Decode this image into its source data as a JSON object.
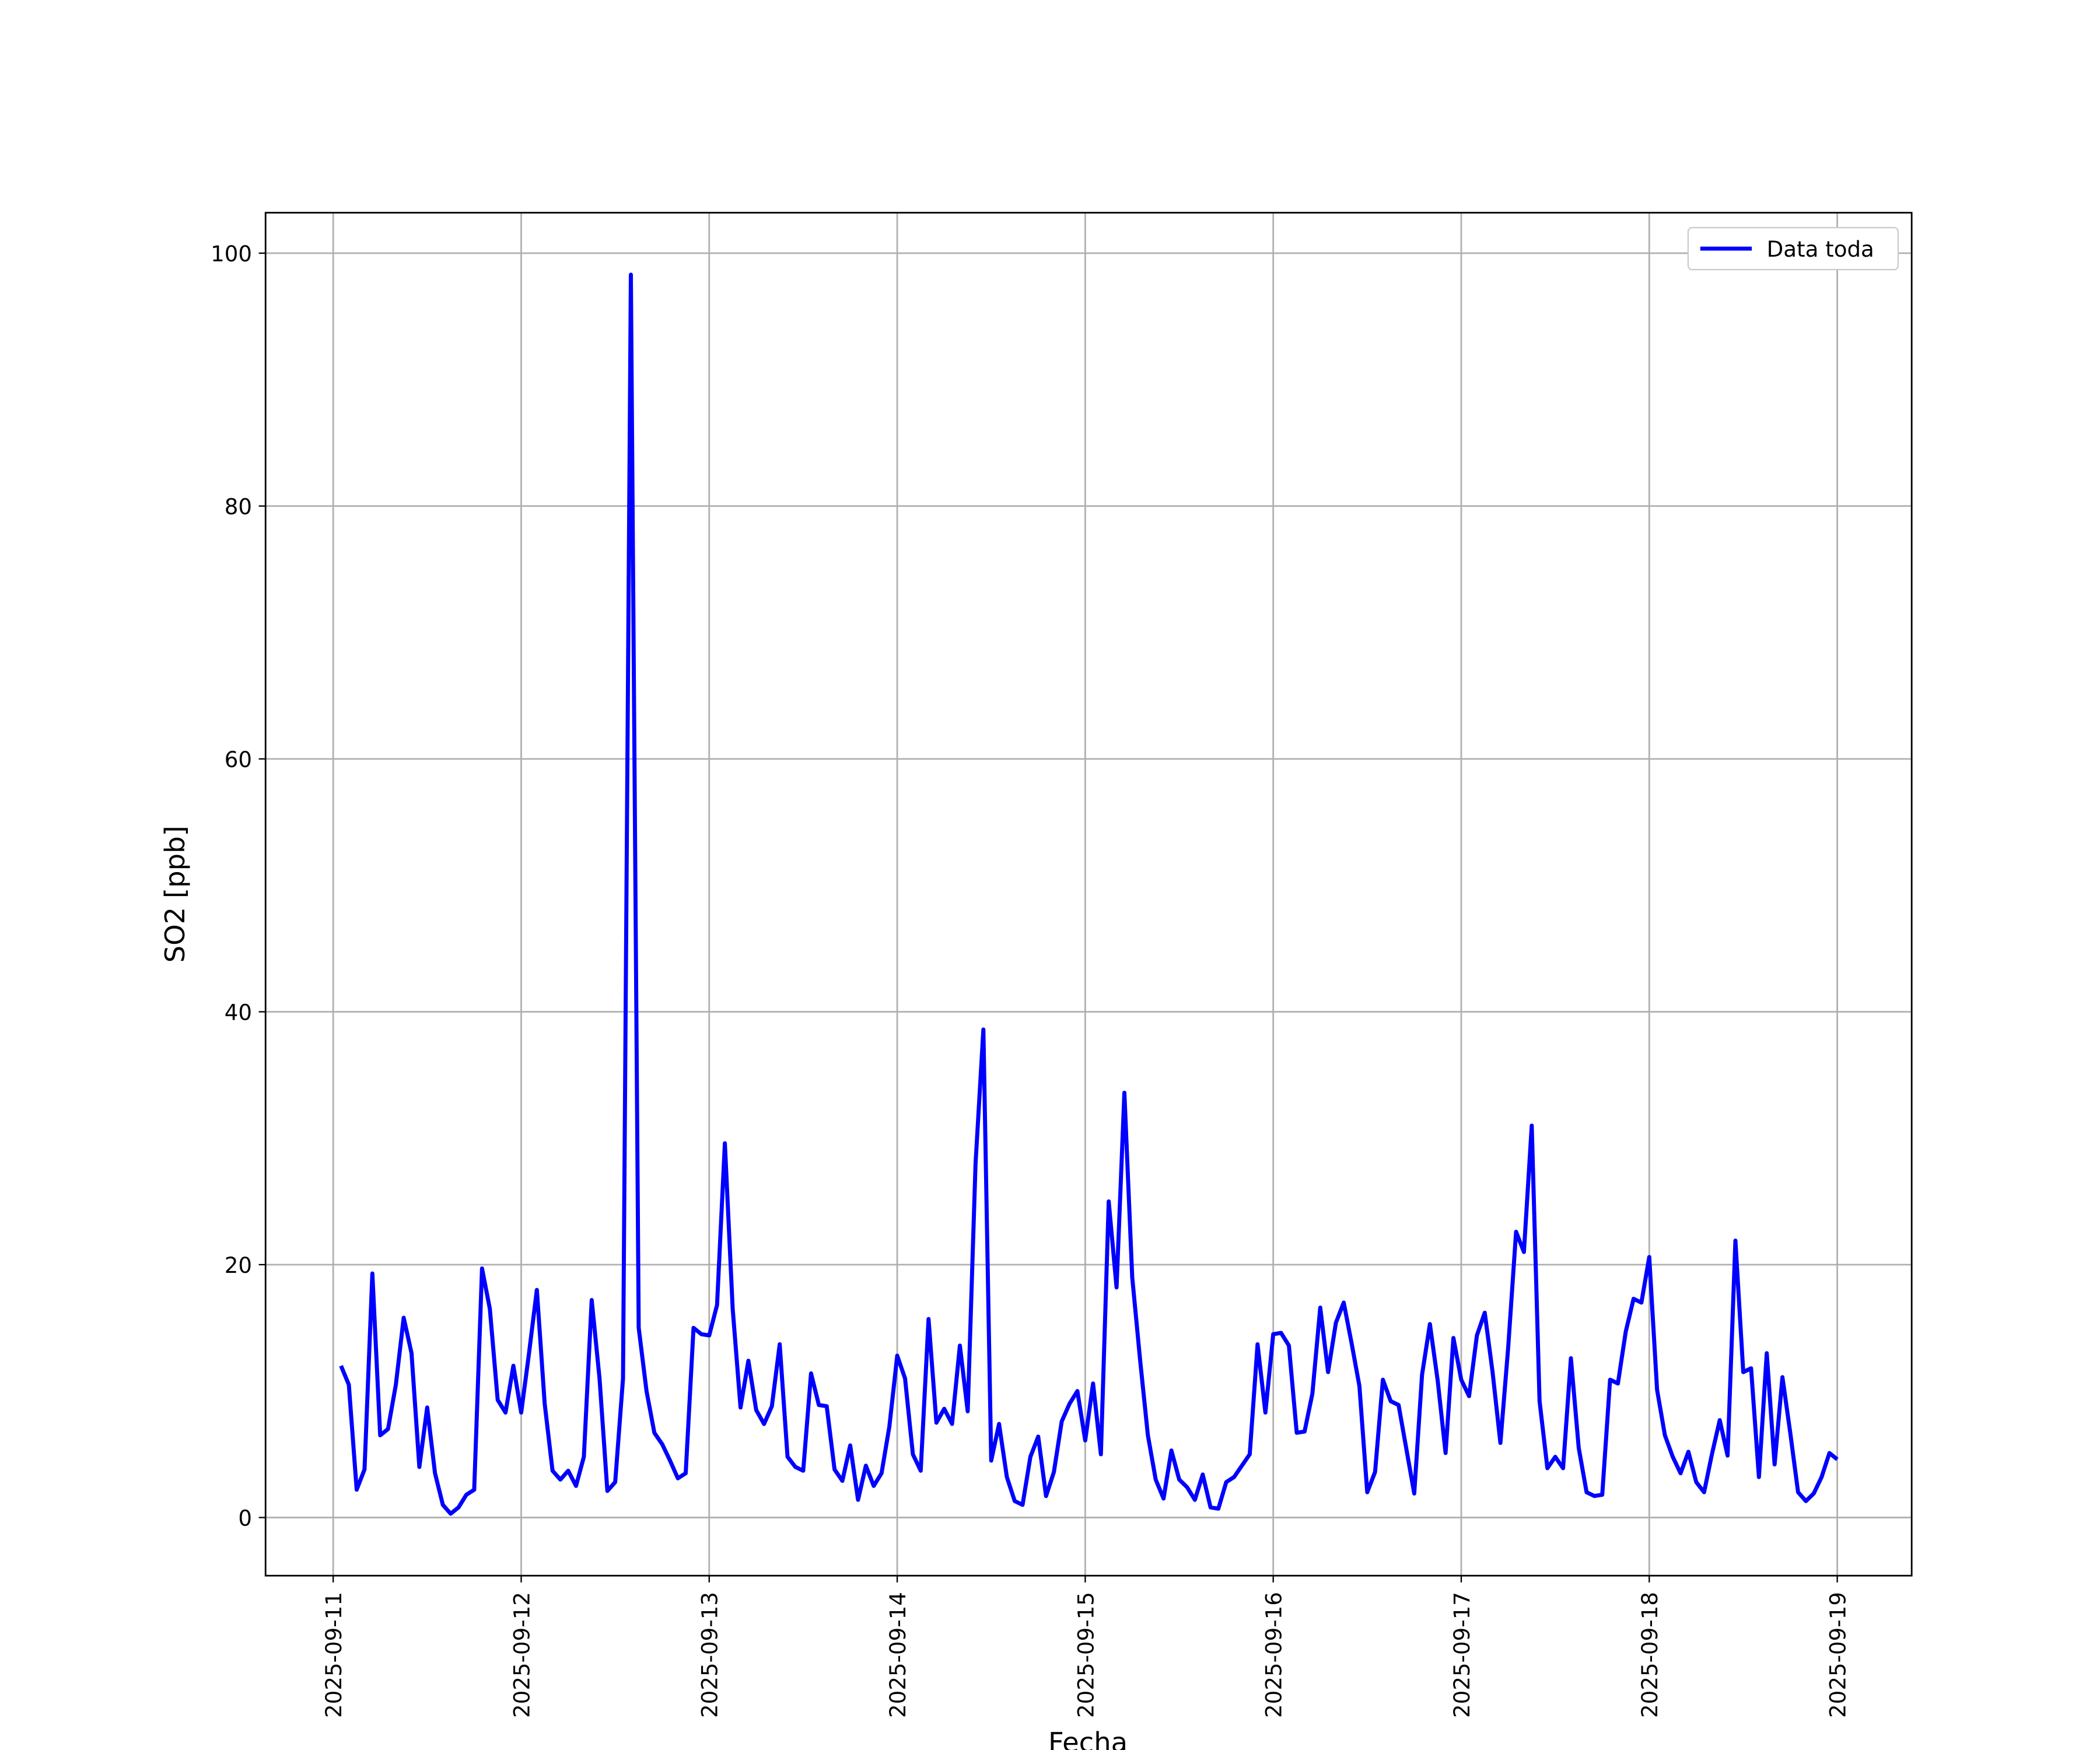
{
  "chart_data": {
    "type": "line",
    "xlabel": "Fecha",
    "ylabel": "SO2 [ppb]",
    "x": [
      "2025-09-11 01:00",
      "2025-09-11 02:00",
      "2025-09-11 03:00",
      "2025-09-11 04:00",
      "2025-09-11 05:00",
      "2025-09-11 06:00",
      "2025-09-11 07:00",
      "2025-09-11 08:00",
      "2025-09-11 09:00",
      "2025-09-11 10:00",
      "2025-09-11 11:00",
      "2025-09-11 12:00",
      "2025-09-11 13:00",
      "2025-09-11 14:00",
      "2025-09-11 15:00",
      "2025-09-11 16:00",
      "2025-09-11 17:00",
      "2025-09-11 18:00",
      "2025-09-11 19:00",
      "2025-09-11 20:00",
      "2025-09-11 21:00",
      "2025-09-11 22:00",
      "2025-09-11 23:00",
      "2025-09-12 00:00",
      "2025-09-12 01:00",
      "2025-09-12 02:00",
      "2025-09-12 03:00",
      "2025-09-12 04:00",
      "2025-09-12 05:00",
      "2025-09-12 06:00",
      "2025-09-12 07:00",
      "2025-09-12 08:00",
      "2025-09-12 09:00",
      "2025-09-12 10:00",
      "2025-09-12 11:00",
      "2025-09-12 12:00",
      "2025-09-12 13:00",
      "2025-09-12 14:00",
      "2025-09-12 15:00",
      "2025-09-12 16:00",
      "2025-09-12 17:00",
      "2025-09-12 18:00",
      "2025-09-12 19:00",
      "2025-09-12 20:00",
      "2025-09-12 21:00",
      "2025-09-12 22:00",
      "2025-09-12 23:00",
      "2025-09-13 00:00",
      "2025-09-13 01:00",
      "2025-09-13 02:00",
      "2025-09-13 03:00",
      "2025-09-13 04:00",
      "2025-09-13 05:00",
      "2025-09-13 06:00",
      "2025-09-13 07:00",
      "2025-09-13 08:00",
      "2025-09-13 09:00",
      "2025-09-13 10:00",
      "2025-09-13 11:00",
      "2025-09-13 12:00",
      "2025-09-13 13:00",
      "2025-09-13 14:00",
      "2025-09-13 15:00",
      "2025-09-13 16:00",
      "2025-09-13 17:00",
      "2025-09-13 18:00",
      "2025-09-13 19:00",
      "2025-09-13 20:00",
      "2025-09-13 21:00",
      "2025-09-13 22:00",
      "2025-09-13 23:00",
      "2025-09-14 00:00",
      "2025-09-14 01:00",
      "2025-09-14 02:00",
      "2025-09-14 03:00",
      "2025-09-14 04:00",
      "2025-09-14 05:00",
      "2025-09-14 06:00",
      "2025-09-14 07:00",
      "2025-09-14 08:00",
      "2025-09-14 09:00",
      "2025-09-14 10:00",
      "2025-09-14 11:00",
      "2025-09-14 12:00",
      "2025-09-14 13:00",
      "2025-09-14 14:00",
      "2025-09-14 15:00",
      "2025-09-14 16:00",
      "2025-09-14 17:00",
      "2025-09-14 18:00",
      "2025-09-14 19:00",
      "2025-09-14 20:00",
      "2025-09-14 21:00",
      "2025-09-14 22:00",
      "2025-09-14 23:00",
      "2025-09-15 00:00",
      "2025-09-15 01:00",
      "2025-09-15 02:00",
      "2025-09-15 03:00",
      "2025-09-15 04:00",
      "2025-09-15 05:00",
      "2025-09-15 06:00",
      "2025-09-15 07:00",
      "2025-09-15 08:00",
      "2025-09-15 09:00",
      "2025-09-15 10:00",
      "2025-09-15 11:00",
      "2025-09-15 12:00",
      "2025-09-15 13:00",
      "2025-09-15 14:00",
      "2025-09-15 15:00",
      "2025-09-15 16:00",
      "2025-09-15 17:00",
      "2025-09-15 18:00",
      "2025-09-15 19:00",
      "2025-09-15 20:00",
      "2025-09-15 21:00",
      "2025-09-15 22:00",
      "2025-09-15 23:00",
      "2025-09-16 00:00",
      "2025-09-16 01:00",
      "2025-09-16 02:00",
      "2025-09-16 03:00",
      "2025-09-16 04:00",
      "2025-09-16 05:00",
      "2025-09-16 06:00",
      "2025-09-16 07:00",
      "2025-09-16 08:00",
      "2025-09-16 09:00",
      "2025-09-16 10:00",
      "2025-09-16 11:00",
      "2025-09-16 12:00",
      "2025-09-16 13:00",
      "2025-09-16 14:00",
      "2025-09-16 15:00",
      "2025-09-16 16:00",
      "2025-09-16 17:00",
      "2025-09-16 18:00",
      "2025-09-16 19:00",
      "2025-09-16 20:00",
      "2025-09-16 21:00",
      "2025-09-16 22:00",
      "2025-09-16 23:00",
      "2025-09-17 00:00",
      "2025-09-17 01:00",
      "2025-09-17 02:00",
      "2025-09-17 03:00",
      "2025-09-17 04:00",
      "2025-09-17 05:00",
      "2025-09-17 06:00",
      "2025-09-17 07:00",
      "2025-09-17 08:00",
      "2025-09-17 09:00",
      "2025-09-17 10:00",
      "2025-09-17 11:00",
      "2025-09-17 12:00",
      "2025-09-17 13:00",
      "2025-09-17 14:00",
      "2025-09-17 15:00",
      "2025-09-17 16:00",
      "2025-09-17 17:00",
      "2025-09-17 18:00",
      "2025-09-17 19:00",
      "2025-09-17 20:00",
      "2025-09-17 21:00",
      "2025-09-17 22:00",
      "2025-09-17 23:00",
      "2025-09-18 00:00",
      "2025-09-18 01:00",
      "2025-09-18 02:00",
      "2025-09-18 03:00",
      "2025-09-18 04:00",
      "2025-09-18 05:00",
      "2025-09-18 06:00",
      "2025-09-18 07:00",
      "2025-09-18 08:00",
      "2025-09-18 09:00",
      "2025-09-18 10:00",
      "2025-09-18 11:00",
      "2025-09-18 12:00",
      "2025-09-18 13:00",
      "2025-09-18 14:00",
      "2025-09-18 15:00",
      "2025-09-18 16:00",
      "2025-09-18 17:00",
      "2025-09-18 18:00",
      "2025-09-18 19:00",
      "2025-09-18 20:00",
      "2025-09-18 21:00",
      "2025-09-18 22:00",
      "2025-09-18 23:00",
      "2025-09-19 00:00"
    ],
    "series": [
      {
        "name": "Data toda",
        "color": "#0000ff",
        "values": [
          12,
          10.5,
          2.2,
          3.8,
          19.3,
          6.5,
          7,
          10.5,
          15.8,
          13,
          4,
          8.7,
          3.5,
          1,
          0.3,
          0.8,
          1.8,
          2.2,
          19.7,
          16.5,
          9.3,
          8.3,
          12,
          8.3,
          13,
          18,
          9,
          3.7,
          3,
          3.7,
          2.5,
          4.8,
          17.2,
          11,
          2.1,
          2.8,
          11,
          98.3,
          15,
          10,
          6.7,
          5.8,
          4.5,
          3.1,
          3.5,
          15,
          14.5,
          14.4,
          16.8,
          29.6,
          16.5,
          8.7,
          12.4,
          8.5,
          7.4,
          8.8,
          13.7,
          4.8,
          4,
          3.7,
          11.4,
          8.9,
          8.8,
          3.8,
          2.9,
          5.7,
          1.4,
          4.1,
          2.5,
          3.5,
          7.2,
          12.8,
          11,
          5,
          3.7,
          15.7,
          7.5,
          8.6,
          7.4,
          13.6,
          8.4,
          28,
          38.6,
          4.5,
          7.4,
          3.2,
          1.3,
          1,
          4.8,
          6.4,
          1.7,
          3.6,
          7.6,
          9,
          10,
          6.1,
          10.6,
          5,
          25,
          18.2,
          33.6,
          19,
          12.5,
          6.5,
          3,
          1.5,
          5.3,
          3,
          2.4,
          1.4,
          3.4,
          0.8,
          0.7,
          2.8,
          3.2,
          4.1,
          5,
          13.7,
          8.3,
          14.5,
          14.6,
          13.6,
          6.7,
          6.8,
          9.8,
          16.6,
          11.5,
          15.4,
          17,
          13.8,
          10.4,
          2,
          3.6,
          10.9,
          9.2,
          8.9,
          5.4,
          1.9,
          11.3,
          15.3,
          10.8,
          5.1,
          14.2,
          10.9,
          9.6,
          14.4,
          16.2,
          11.5,
          5.9,
          13.5,
          22.6,
          21,
          31,
          9.2,
          3.9,
          4.8,
          3.9,
          12.6,
          5.5,
          2,
          1.7,
          1.8,
          10.9,
          10.6,
          14.7,
          17.3,
          17,
          20.6,
          10.1,
          6.5,
          4.8,
          3.5,
          5.2,
          2.8,
          2,
          5,
          7.7,
          4.9,
          21.9,
          11.5,
          11.8,
          3.2,
          13,
          4.2,
          11.1,
          6.7,
          2,
          1.3,
          1.9,
          3.2,
          5.1,
          4.6
        ]
      }
    ],
    "xlim": [
      "2025-09-10 15:22",
      "2025-09-19 09:30"
    ],
    "xticks": [
      "2025-09-11",
      "2025-09-12",
      "2025-09-13",
      "2025-09-14",
      "2025-09-15",
      "2025-09-16",
      "2025-09-17",
      "2025-09-18",
      "2025-09-19"
    ],
    "ylim": [
      -4.6,
      103.2
    ],
    "yticks": [
      0,
      20,
      40,
      60,
      80,
      100
    ],
    "grid": true,
    "legend": "upper right"
  }
}
